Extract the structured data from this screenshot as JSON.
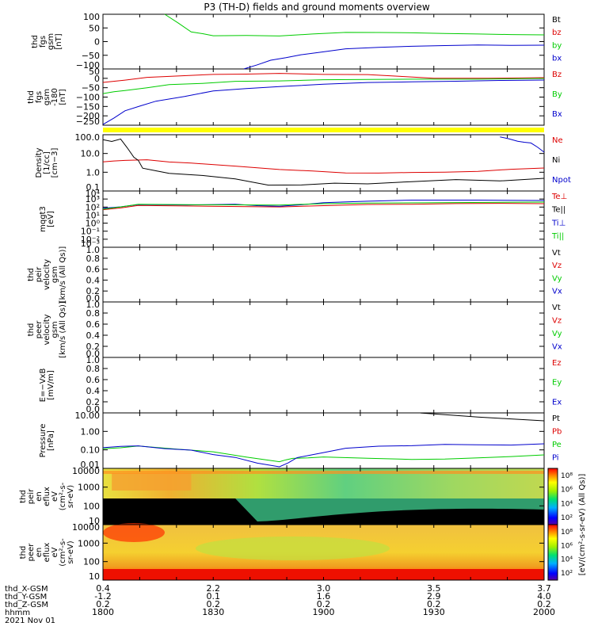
{
  "title": "P3 (TH-D) fields and ground moments overview",
  "colors": {
    "black": "#000000",
    "red": "#dd0000",
    "green": "#00cc00",
    "blue": "#0000cc",
    "yellow": "#ffff00"
  },
  "panels": [
    {
      "id": "fgs",
      "ylabel": [
        "thd",
        "fgs",
        "gsm",
        "[nT]"
      ],
      "ylim": [
        -100,
        100
      ],
      "ticks": [
        "100",
        "50",
        "0",
        "−50",
        "−100"
      ],
      "legend": [
        {
          "text": "Bt",
          "color": "#000000"
        },
        {
          "text": "bz",
          "color": "#dd0000"
        },
        {
          "text": "by",
          "color": "#00cc00"
        },
        {
          "text": "bx",
          "color": "#0000cc"
        }
      ]
    },
    {
      "id": "fgs2",
      "ylabel": [
        "thd",
        "fgs",
        "gsm",
        "-180",
        "[nT]"
      ],
      "ylim": [
        -270,
        50
      ],
      "ticks": [
        "50",
        "0",
        "−50",
        "−100",
        "−150",
        "−200",
        "−250"
      ],
      "legend": [
        {
          "text": "Bz",
          "color": "#dd0000"
        },
        {
          "text": "By",
          "color": "#00cc00"
        },
        {
          "text": "Bx",
          "color": "#0000cc"
        }
      ]
    },
    {
      "id": "density",
      "ylabel": [
        "Density",
        "[1/cc]",
        "[cm−3]"
      ],
      "ticks": [
        "100.0",
        "10.0",
        "1.0",
        "0.1"
      ],
      "scale": "log",
      "legend": [
        {
          "text": "Ne",
          "color": "#dd0000"
        },
        {
          "text": "Ni",
          "color": "#000000"
        },
        {
          "text": "Npot",
          "color": "#0000cc"
        }
      ]
    },
    {
      "id": "temp",
      "ylabel": [
        "mqgt3",
        "[eV]"
      ],
      "ticks": [
        "10⁴",
        "10³",
        "10²",
        "10¹",
        "10⁰",
        "10⁻¹",
        "10⁻²",
        "10⁻³"
      ],
      "scale": "log",
      "legend": [
        {
          "text": "Te⊥",
          "color": "#dd0000"
        },
        {
          "text": "Te||",
          "color": "#000000"
        },
        {
          "text": "Ti⊥",
          "color": "#0000cc"
        },
        {
          "text": "Ti||",
          "color": "#00cc00"
        }
      ]
    },
    {
      "id": "peir_vel",
      "ylabel": [
        "thd",
        "peir",
        "velocity",
        "gsm",
        "[km/s (All Qs)]"
      ],
      "ticks": [
        "1.0",
        "0.8",
        "0.6",
        "0.4",
        "0.2",
        "0.0"
      ],
      "legend": [
        {
          "text": "Vt",
          "color": "#000000"
        },
        {
          "text": "Vz",
          "color": "#dd0000"
        },
        {
          "text": "Vy",
          "color": "#00cc00"
        },
        {
          "text": "Vx",
          "color": "#0000cc"
        }
      ]
    },
    {
      "id": "peer_vel",
      "ylabel": [
        "thd",
        "peer",
        "velocity",
        "gsm",
        "[km/s (All Qs)]"
      ],
      "ticks": [
        "1.0",
        "0.8",
        "0.6",
        "0.4",
        "0.2",
        "0.0"
      ],
      "legend": [
        {
          "text": "Vt",
          "color": "#000000"
        },
        {
          "text": "Vz",
          "color": "#dd0000"
        },
        {
          "text": "Vy",
          "color": "#00cc00"
        },
        {
          "text": "Vx",
          "color": "#0000cc"
        }
      ]
    },
    {
      "id": "efield",
      "ylabel": [
        "E=−VxB",
        "[mV/m]"
      ],
      "ticks": [
        "1.0",
        "0.8",
        "0.6",
        "0.4",
        "0.2",
        "0.0"
      ],
      "legend": [
        {
          "text": "Ez",
          "color": "#dd0000"
        },
        {
          "text": "Ey",
          "color": "#00cc00"
        },
        {
          "text": "Ex",
          "color": "#0000cc"
        }
      ]
    },
    {
      "id": "pressure",
      "ylabel": [
        "Pressure",
        "[nPa]"
      ],
      "ticks": [
        "10.00",
        "1.00",
        "0.10",
        "0.01"
      ],
      "scale": "log",
      "legend": [
        {
          "text": "Pt",
          "color": "#000000"
        },
        {
          "text": "Pb",
          "color": "#dd0000"
        },
        {
          "text": "Pe",
          "color": "#00cc00"
        },
        {
          "text": "Pi",
          "color": "#0000cc"
        }
      ]
    },
    {
      "id": "peir_spec",
      "ylabel": [
        "thd",
        "peir",
        "en",
        "eflux",
        "eV",
        "(cm²-s-",
        "sr-eV)"
      ],
      "ticks": [
        "10000",
        "1000",
        "100",
        "10"
      ],
      "scale": "log",
      "cbar_ticks": [
        "10⁸",
        "10⁶",
        "10⁴",
        "10²"
      ],
      "cbar_label": "[eV/(cm²-s-sr-eV) (All Qs)]"
    },
    {
      "id": "peer_spec",
      "ylabel": [
        "thd",
        "peer",
        "en",
        "eflux",
        "eV",
        "(cm²-s-",
        "sr-eV)"
      ],
      "ticks": [
        "10000",
        "1000",
        "100",
        "10"
      ],
      "scale": "log",
      "cbar_ticks": [
        "10⁸",
        "10⁶",
        "10⁴",
        "10²"
      ],
      "cbar_label": "[eV/(cm²-s-sr-eV)]"
    }
  ],
  "xaxis": {
    "row_labels": [
      "thd_X-GSM",
      "thd_Y-GSM",
      "thd_Z-GSM",
      "hhmm",
      "2021 Nov 01"
    ],
    "columns": [
      {
        "x": "0.4",
        "y": "-1.2",
        "z": "0.2",
        "hhmm": "1800"
      },
      {
        "x": "2.2",
        "y": "0.1",
        "z": "0.2",
        "hhmm": "1830"
      },
      {
        "x": "3.0",
        "y": "1.6",
        "z": "0.2",
        "hhmm": "1900"
      },
      {
        "x": "3.5",
        "y": "2.9",
        "z": "0.2",
        "hhmm": "1930"
      },
      {
        "x": "3.7",
        "y": "4.0",
        "z": "0.2",
        "hhmm": "2000"
      }
    ]
  },
  "chart_data": {
    "type": "line",
    "title": "P3 (TH-D) fields and ground moments overview",
    "x": [
      "1800",
      "1830",
      "1900",
      "1930",
      "2000"
    ],
    "xlabel": "hhmm",
    "series": [
      {
        "name": "by",
        "values": [
          110,
          22,
          32,
          32,
          25
        ]
      },
      {
        "name": "bx",
        "values": [
          -110,
          -110,
          -28,
          -8,
          -10
        ]
      },
      {
        "name": "Bz",
        "values": [
          -15,
          2,
          -2,
          -8,
          -5
        ]
      },
      {
        "name": "By",
        "values": [
          -70,
          -20,
          -8,
          -5,
          -4
        ]
      },
      {
        "name": "Bx",
        "values": [
          -230,
          -60,
          -20,
          -8,
          -5
        ]
      },
      {
        "name": "Ne",
        "values": [
          3,
          3,
          0.9,
          0.8,
          1.5
        ]
      },
      {
        "name": "Ni",
        "values": [
          150,
          0.5,
          0.12,
          0.2,
          0.3
        ]
      },
      {
        "name": "Pe",
        "values": [
          0.1,
          0.2,
          0.02,
          0.025,
          0.04
        ]
      },
      {
        "name": "Pi",
        "values": [
          0.12,
          0.22,
          0.01,
          0.2,
          0.25
        ]
      },
      {
        "name": "Pt",
        "values": [
          null,
          null,
          null,
          10,
          2
        ]
      }
    ]
  }
}
